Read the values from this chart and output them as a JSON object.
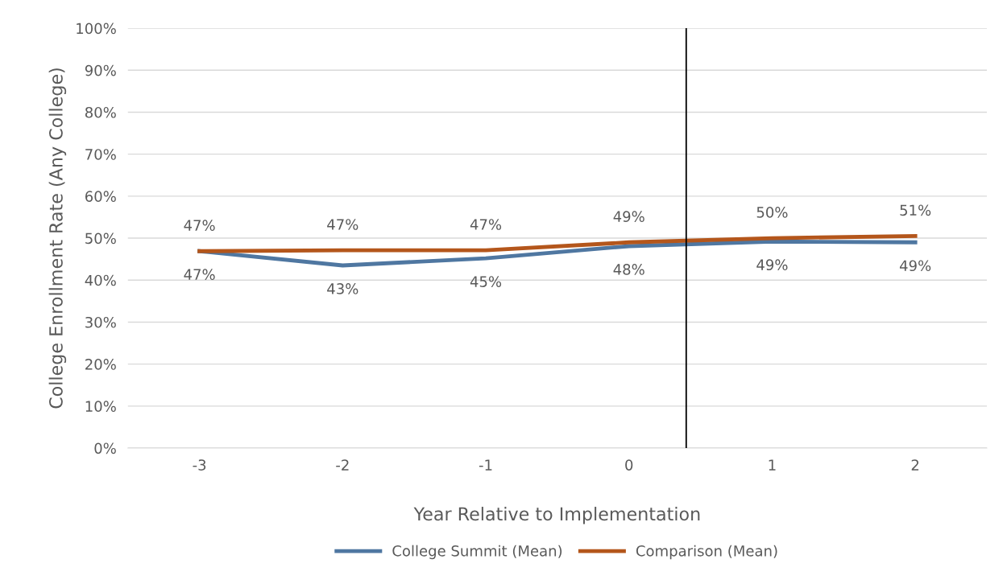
{
  "chart_data": {
    "type": "line",
    "xlabel": "Year Relative to Implementation",
    "ylabel": "College Enrollment Rate (Any College)",
    "x": [
      -3,
      -2,
      -1,
      0,
      1,
      2
    ],
    "xlim": [
      -3.5,
      2.5
    ],
    "xticks": [
      -3,
      -2,
      -1,
      0,
      1,
      2
    ],
    "ylim": [
      0,
      100
    ],
    "yticks": [
      {
        "value": 0,
        "label": "0%"
      },
      {
        "value": 10,
        "label": "10%"
      },
      {
        "value": 20,
        "label": "20%"
      },
      {
        "value": 30,
        "label": "30%"
      },
      {
        "value": 40,
        "label": "40%"
      },
      {
        "value": 50,
        "label": "50%"
      },
      {
        "value": 60,
        "label": "60%"
      },
      {
        "value": 70,
        "label": "70%"
      },
      {
        "value": 80,
        "label": "80%"
      },
      {
        "value": 90,
        "label": "90%"
      },
      {
        "value": 100,
        "label": "100%"
      }
    ],
    "series": [
      {
        "name": "College Summit (Mean)",
        "color": "#4f77a1",
        "values": [
          46.9,
          43.5,
          45.2,
          48.1,
          49.2,
          49.0
        ],
        "value_labels": [
          "47%",
          "43%",
          "45%",
          "48%",
          "49%",
          "49%"
        ]
      },
      {
        "name": "Comparison (Mean)",
        "color": "#b4561b",
        "values": [
          46.9,
          47.1,
          47.1,
          49.0,
          50.0,
          50.5
        ],
        "value_labels": [
          "47%",
          "47%",
          "47%",
          "49%",
          "50%",
          "51%"
        ]
      }
    ],
    "ref_lines": [
      {
        "axis": "x",
        "value": 0.4,
        "color": "#000000"
      }
    ],
    "grid": "y",
    "legend": "bottom",
    "marker": "none",
    "line_style": "solid"
  }
}
